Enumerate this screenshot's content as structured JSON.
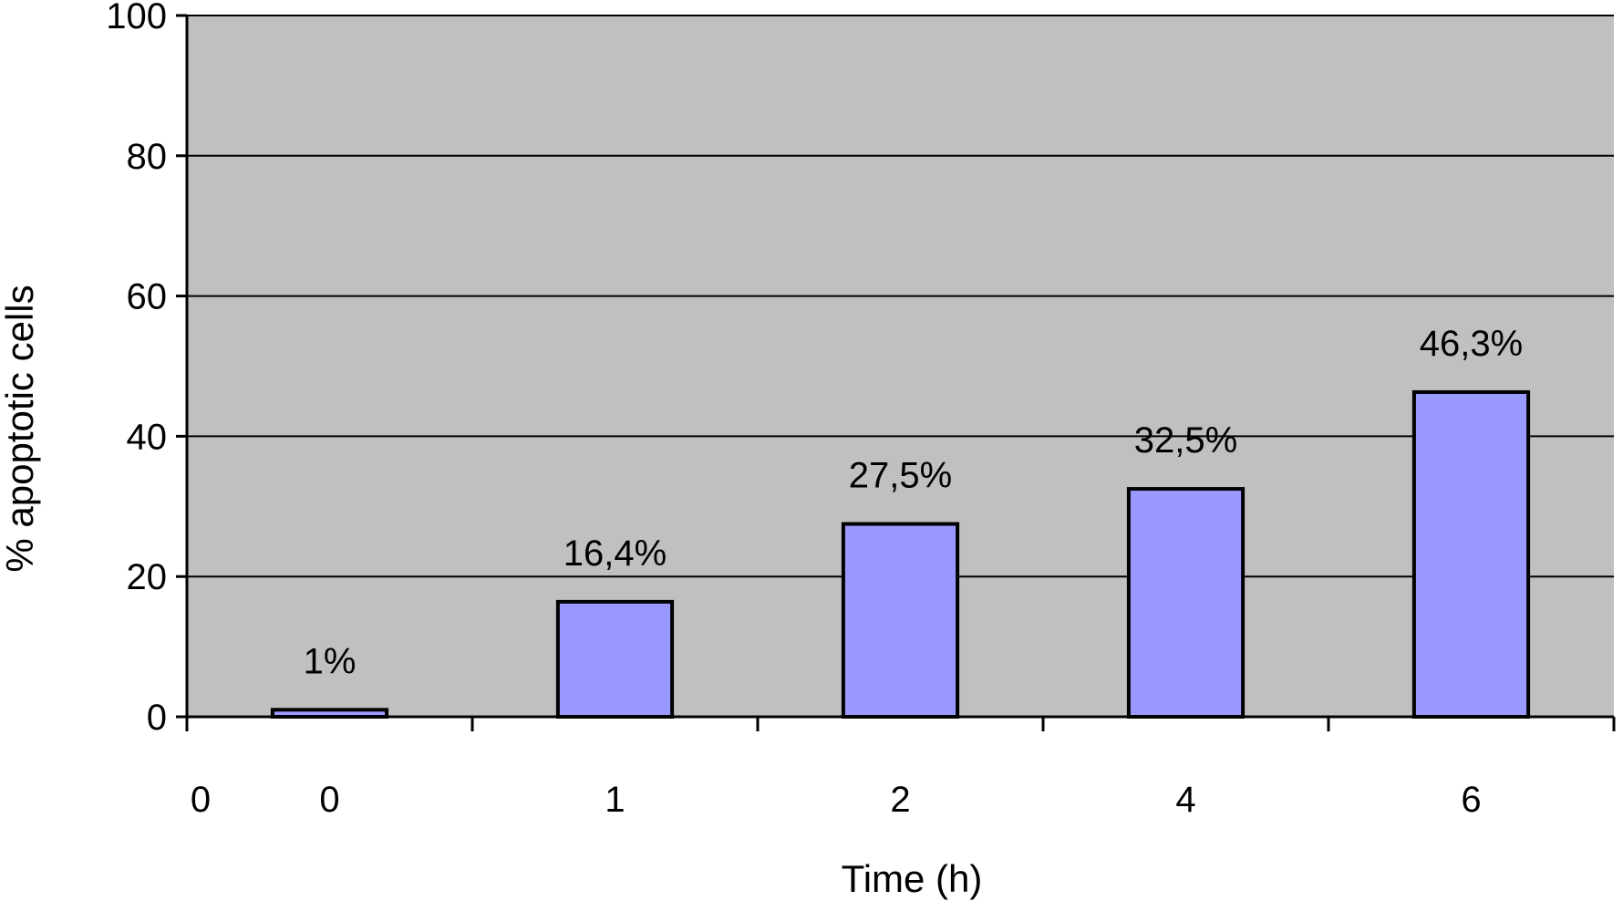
{
  "chart_data": {
    "type": "bar",
    "xlabel": "Time (h)",
    "ylabel": "% apoptotic cells",
    "x_origin_label": "0",
    "categories": [
      "0",
      "1",
      "2",
      "4",
      "6"
    ],
    "values": [
      1,
      16.4,
      27.5,
      32.5,
      46.3
    ],
    "data_labels": [
      "1%",
      "16,4%",
      "27,5%",
      "32,5%",
      "46,3%"
    ],
    "ylim": [
      0,
      100
    ],
    "yticks": [
      "0",
      "20",
      "40",
      "60",
      "80",
      "100"
    ],
    "grid": true,
    "legend": "none",
    "colors": {
      "plot_background": "#c0c0c0",
      "bar_fill": "#9999ff",
      "bar_stroke": "#000000",
      "gridline": "#000000"
    }
  }
}
